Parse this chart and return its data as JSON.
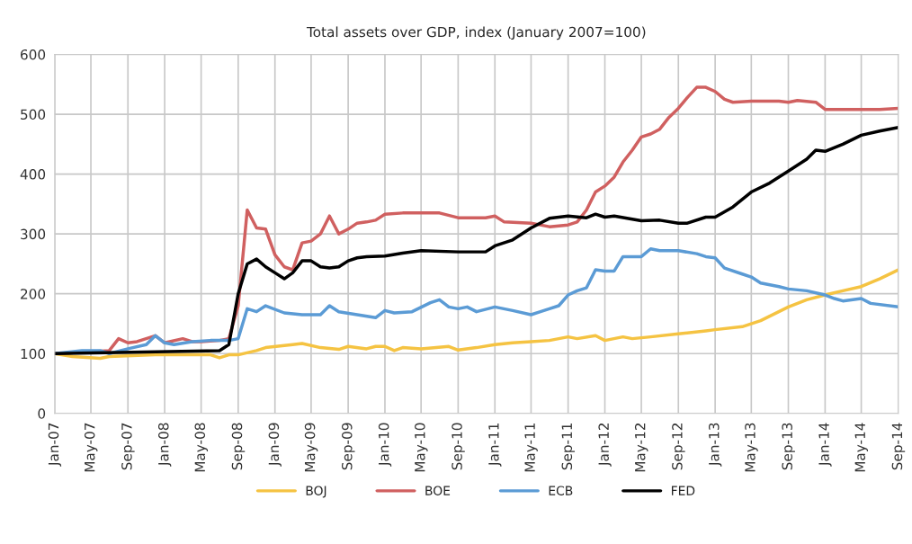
{
  "chart_data": {
    "type": "line",
    "title": "Total assets over GDP, index (January 2007=100)",
    "xlim": [
      "2007-01",
      "2014-09"
    ],
    "ylim": [
      0,
      600
    ],
    "yticks": [
      0,
      100,
      200,
      300,
      400,
      500,
      600
    ],
    "xticks": [
      {
        "value": "2007-01",
        "label": "Jan-07"
      },
      {
        "value": "2007-05",
        "label": "May-07"
      },
      {
        "value": "2007-09",
        "label": "Sep-07"
      },
      {
        "value": "2008-01",
        "label": "Jan-08"
      },
      {
        "value": "2008-05",
        "label": "May-08"
      },
      {
        "value": "2008-09",
        "label": "Sep-08"
      },
      {
        "value": "2009-01",
        "label": "Jan-09"
      },
      {
        "value": "2009-05",
        "label": "May-09"
      },
      {
        "value": "2009-09",
        "label": "Sep-09"
      },
      {
        "value": "2010-01",
        "label": "Jan-10"
      },
      {
        "value": "2010-05",
        "label": "May-10"
      },
      {
        "value": "2010-09",
        "label": "Sep-10"
      },
      {
        "value": "2011-01",
        "label": "Jan-11"
      },
      {
        "value": "2011-05",
        "label": "May-11"
      },
      {
        "value": "2011-09",
        "label": "Sep-11"
      },
      {
        "value": "2012-01",
        "label": "Jan-12"
      },
      {
        "value": "2012-05",
        "label": "May-12"
      },
      {
        "value": "2012-09",
        "label": "Sep-12"
      },
      {
        "value": "2013-01",
        "label": "Jan-13"
      },
      {
        "value": "2013-05",
        "label": "May-13"
      },
      {
        "value": "2013-09",
        "label": "Sep-13"
      },
      {
        "value": "2014-01",
        "label": "Jan-14"
      },
      {
        "value": "2014-05",
        "label": "May-14"
      },
      {
        "value": "2014-09",
        "label": "Sep-14"
      }
    ],
    "grid": true,
    "legend": "bottom",
    "marker": "none",
    "line_style": "solid",
    "series": [
      {
        "name": "BOJ",
        "color": "#f5c342",
        "x": [
          "2007-01",
          "2007-03",
          "2007-06",
          "2007-07",
          "2007-12",
          "2008-06",
          "2008-07",
          "2008-08",
          "2008-09",
          "2008-11",
          "2008-12",
          "2009-03",
          "2009-04",
          "2009-06",
          "2009-08",
          "2009-09",
          "2009-11",
          "2009-12",
          "2010-01",
          "2010-02",
          "2010-03",
          "2010-05",
          "2010-08",
          "2010-09",
          "2010-11",
          "2011-01",
          "2011-03",
          "2011-05",
          "2011-07",
          "2011-08",
          "2011-09",
          "2011-10",
          "2011-12",
          "2012-01",
          "2012-03",
          "2012-04",
          "2012-06",
          "2012-09",
          "2012-12",
          "2013-01",
          "2013-04",
          "2013-06",
          "2013-09",
          "2013-11",
          "2014-01",
          "2014-03",
          "2014-05",
          "2014-07",
          "2014-09"
        ],
        "values": [
          100,
          95,
          92,
          95,
          98,
          98,
          93,
          98,
          98,
          105,
          110,
          115,
          117,
          110,
          107,
          112,
          108,
          112,
          112,
          105,
          110,
          108,
          112,
          106,
          110,
          115,
          118,
          120,
          122,
          125,
          128,
          125,
          130,
          122,
          128,
          125,
          128,
          133,
          138,
          140,
          145,
          155,
          178,
          190,
          198,
          205,
          212,
          225,
          240
        ]
      },
      {
        "name": "BOE",
        "color": "#d06060",
        "x": [
          "2007-01",
          "2007-07",
          "2007-08",
          "2007-09",
          "2007-10",
          "2007-12",
          "2008-01",
          "2008-03",
          "2008-04",
          "2008-05",
          "2008-07",
          "2008-08",
          "2008-09",
          "2008-10",
          "2008-11",
          "2008-12",
          "2009-01",
          "2009-02",
          "2009-03",
          "2009-04",
          "2009-05",
          "2009-06",
          "2009-07",
          "2009-08",
          "2009-09",
          "2009-10",
          "2009-11",
          "2009-12",
          "2010-01",
          "2010-03",
          "2010-05",
          "2010-07",
          "2010-09",
          "2010-12",
          "2011-01",
          "2011-02",
          "2011-05",
          "2011-07",
          "2011-09",
          "2011-10",
          "2011-11",
          "2011-12",
          "2012-01",
          "2012-02",
          "2012-03",
          "2012-04",
          "2012-05",
          "2012-06",
          "2012-07",
          "2012-08",
          "2012-09",
          "2012-10",
          "2012-11",
          "2012-12",
          "2013-01",
          "2013-02",
          "2013-03",
          "2013-05",
          "2013-08",
          "2013-09",
          "2013-10",
          "2013-12",
          "2014-01",
          "2014-03",
          "2014-07",
          "2014-09"
        ],
        "values": [
          100,
          105,
          125,
          118,
          120,
          130,
          118,
          125,
          120,
          120,
          122,
          125,
          180,
          340,
          310,
          308,
          265,
          245,
          240,
          285,
          288,
          300,
          330,
          300,
          308,
          318,
          320,
          323,
          333,
          335,
          335,
          335,
          327,
          327,
          330,
          320,
          318,
          312,
          315,
          320,
          340,
          370,
          380,
          395,
          420,
          440,
          462,
          467,
          475,
          495,
          510,
          528,
          545,
          545,
          538,
          525,
          520,
          522,
          522,
          520,
          523,
          520,
          508,
          508,
          508,
          510
        ]
      },
      {
        "name": "ECB",
        "color": "#5b9bd5",
        "x": [
          "2007-01",
          "2007-04",
          "2007-06",
          "2007-07",
          "2007-09",
          "2007-11",
          "2007-12",
          "2008-01",
          "2008-02",
          "2008-04",
          "2008-06",
          "2008-08",
          "2008-09",
          "2008-10",
          "2008-11",
          "2008-12",
          "2009-02",
          "2009-04",
          "2009-06",
          "2009-07",
          "2009-08",
          "2009-10",
          "2009-12",
          "2010-01",
          "2010-02",
          "2010-04",
          "2010-06",
          "2010-07",
          "2010-08",
          "2010-09",
          "2010-10",
          "2010-11",
          "2011-01",
          "2011-03",
          "2011-05",
          "2011-06",
          "2011-07",
          "2011-08",
          "2011-09",
          "2011-10",
          "2011-11",
          "2011-12",
          "2012-01",
          "2012-02",
          "2012-03",
          "2012-04",
          "2012-05",
          "2012-06",
          "2012-07",
          "2012-09",
          "2012-11",
          "2012-12",
          "2013-01",
          "2013-02",
          "2013-04",
          "2013-05",
          "2013-06",
          "2013-08",
          "2013-09",
          "2013-11",
          "2014-01",
          "2014-02",
          "2014-03",
          "2014-05",
          "2014-06",
          "2014-09"
        ],
        "values": [
          100,
          105,
          105,
          100,
          108,
          115,
          130,
          118,
          115,
          120,
          122,
          122,
          125,
          175,
          170,
          180,
          168,
          165,
          165,
          180,
          170,
          165,
          160,
          172,
          168,
          170,
          185,
          190,
          178,
          175,
          178,
          170,
          178,
          172,
          165,
          170,
          175,
          180,
          198,
          205,
          210,
          240,
          238,
          238,
          262,
          262,
          262,
          275,
          272,
          272,
          267,
          262,
          260,
          243,
          233,
          228,
          218,
          212,
          208,
          205,
          198,
          192,
          188,
          192,
          184,
          178
        ]
      },
      {
        "name": "FED",
        "color": "#000000",
        "x": [
          "2007-01",
          "2008-07",
          "2008-08",
          "2008-09",
          "2008-10",
          "2008-11",
          "2008-12",
          "2009-01",
          "2009-02",
          "2009-03",
          "2009-04",
          "2009-05",
          "2009-06",
          "2009-07",
          "2009-08",
          "2009-09",
          "2009-10",
          "2009-11",
          "2010-01",
          "2010-03",
          "2010-05",
          "2010-09",
          "2010-12",
          "2011-01",
          "2011-03",
          "2011-05",
          "2011-07",
          "2011-09",
          "2011-11",
          "2011-12",
          "2012-01",
          "2012-02",
          "2012-05",
          "2012-07",
          "2012-09",
          "2012-10",
          "2012-12",
          "2013-01",
          "2013-03",
          "2013-05",
          "2013-07",
          "2013-09",
          "2013-11",
          "2013-12",
          "2014-01",
          "2014-03",
          "2014-05",
          "2014-07",
          "2014-09"
        ],
        "values": [
          100,
          105,
          115,
          200,
          250,
          258,
          245,
          235,
          225,
          235,
          255,
          255,
          245,
          243,
          245,
          255,
          260,
          262,
          263,
          268,
          272,
          270,
          270,
          280,
          290,
          310,
          326,
          330,
          327,
          333,
          328,
          330,
          322,
          323,
          318,
          318,
          328,
          328,
          345,
          370,
          385,
          405,
          425,
          440,
          438,
          450,
          465,
          472,
          478
        ]
      }
    ]
  }
}
